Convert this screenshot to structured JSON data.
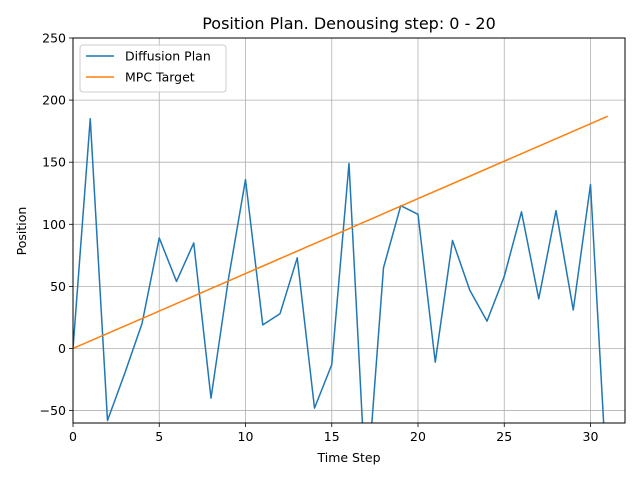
{
  "chart_data": {
    "type": "line",
    "title": "Position Plan. Denousing step: 0 - 20",
    "xlabel": "Time Step",
    "ylabel": "Position",
    "xlim": [
      0,
      32
    ],
    "ylim": [
      -60,
      250
    ],
    "xticks": [
      0,
      5,
      10,
      15,
      20,
      25,
      30
    ],
    "yticks": [
      -50,
      0,
      50,
      100,
      150,
      200,
      250
    ],
    "grid": true,
    "legend_position": "top-left",
    "series": [
      {
        "name": "Diffusion Plan",
        "color": "#1f77b4",
        "x": [
          0,
          1,
          2,
          3,
          4,
          5,
          6,
          7,
          8,
          9,
          10,
          11,
          12,
          13,
          14,
          15,
          16,
          17,
          18,
          19,
          20,
          21,
          22,
          23,
          24,
          25,
          26,
          27,
          28,
          29,
          30,
          31
        ],
        "values": [
          0,
          185,
          -58,
          -20,
          20,
          89,
          54,
          85,
          -40,
          55,
          136,
          19,
          28,
          73,
          -48,
          -13,
          149,
          -120,
          65,
          115,
          108,
          -11,
          87,
          47,
          22,
          58,
          110,
          40,
          111,
          31,
          132,
          -120
        ]
      },
      {
        "name": "MPC Target",
        "color": "#ff7f0e",
        "x": [
          0,
          31
        ],
        "values": [
          0,
          187
        ]
      }
    ]
  }
}
